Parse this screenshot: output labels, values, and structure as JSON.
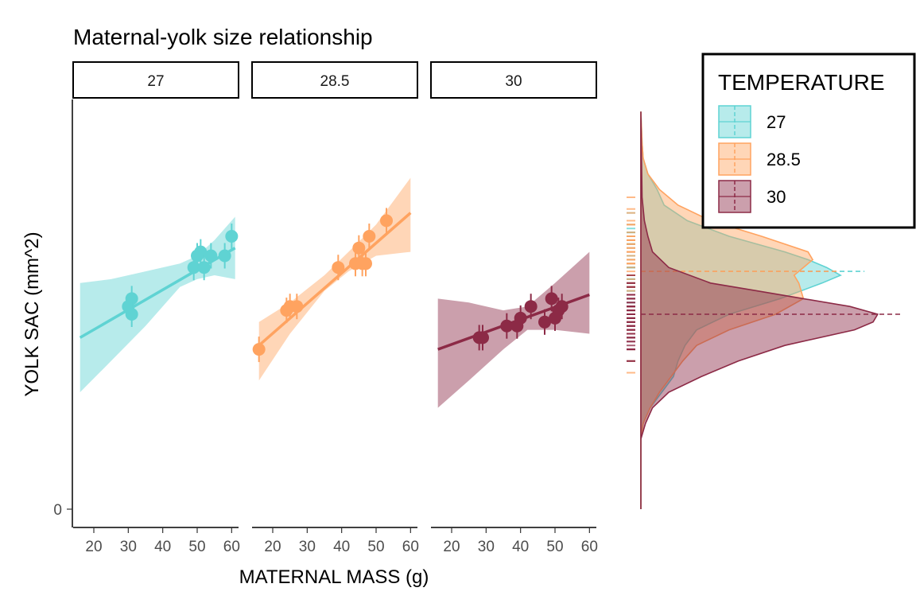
{
  "chart_data": {
    "type": "scatter",
    "title": "Maternal-yolk size relationship",
    "xlabel": "MATERNAL MASS (g)",
    "ylabel": "YOLK SAC (mm^2)",
    "xlim": [
      14,
      62
    ],
    "x_ticks": [
      "20",
      "30",
      "40",
      "50",
      "60"
    ],
    "y_ticks": [
      "0"
    ],
    "ylim": [
      0,
      1.07
    ],
    "grid": false,
    "legend": {
      "title": "TEMPERATURE",
      "position": "top-right",
      "entries": [
        "27",
        "28.5",
        "30"
      ]
    },
    "facets": [
      {
        "label": "27",
        "color": "#5fd3d3",
        "points": [
          [
            30,
            0.52
          ],
          [
            31,
            0.54
          ],
          [
            31,
            0.5
          ],
          [
            49,
            0.62
          ],
          [
            50,
            0.65
          ],
          [
            51,
            0.66
          ],
          [
            52,
            0.62
          ],
          [
            54,
            0.65
          ],
          [
            58,
            0.65
          ],
          [
            60,
            0.7
          ]
        ],
        "fit": {
          "x": [
            16,
            61
          ],
          "y": [
            0.44,
            0.67
          ]
        },
        "ci_upper": [
          [
            16,
            0.58
          ],
          [
            25,
            0.59
          ],
          [
            35,
            0.61
          ],
          [
            45,
            0.63
          ],
          [
            50,
            0.65
          ],
          [
            55,
            0.69
          ],
          [
            61,
            0.75
          ]
        ],
        "ci_lower": [
          [
            16,
            0.3
          ],
          [
            25,
            0.38
          ],
          [
            35,
            0.47
          ],
          [
            45,
            0.57
          ],
          [
            50,
            0.59
          ],
          [
            55,
            0.6
          ],
          [
            61,
            0.59
          ]
        ]
      },
      {
        "label": "28.5",
        "color": "#ffa360",
        "points": [
          [
            16,
            0.41
          ],
          [
            24,
            0.51
          ],
          [
            25,
            0.52
          ],
          [
            27,
            0.52
          ],
          [
            39,
            0.62
          ],
          [
            44,
            0.63
          ],
          [
            45,
            0.67
          ],
          [
            46,
            0.63
          ],
          [
            47,
            0.63
          ],
          [
            48,
            0.7
          ],
          [
            53,
            0.74
          ]
        ],
        "fit": {
          "x": [
            16,
            60
          ],
          "y": [
            0.42,
            0.76
          ]
        },
        "ci_upper": [
          [
            16,
            0.48
          ],
          [
            25,
            0.53
          ],
          [
            35,
            0.6
          ],
          [
            42,
            0.66
          ],
          [
            50,
            0.73
          ],
          [
            60,
            0.85
          ]
        ],
        "ci_lower": [
          [
            16,
            0.33
          ],
          [
            25,
            0.45
          ],
          [
            35,
            0.56
          ],
          [
            42,
            0.61
          ],
          [
            50,
            0.65
          ],
          [
            60,
            0.66
          ]
        ]
      },
      {
        "label": "30",
        "color": "#8c2a46",
        "points": [
          [
            28,
            0.44
          ],
          [
            29,
            0.44
          ],
          [
            36,
            0.47
          ],
          [
            39,
            0.47
          ],
          [
            40,
            0.49
          ],
          [
            43,
            0.52
          ],
          [
            47,
            0.48
          ],
          [
            49,
            0.54
          ],
          [
            50,
            0.49
          ],
          [
            51,
            0.51
          ],
          [
            52,
            0.52
          ]
        ],
        "fit": {
          "x": [
            16,
            60
          ],
          "y": [
            0.41,
            0.55
          ]
        },
        "ci_upper": [
          [
            16,
            0.54
          ],
          [
            25,
            0.53
          ],
          [
            35,
            0.51
          ],
          [
            42,
            0.52
          ],
          [
            50,
            0.58
          ],
          [
            60,
            0.66
          ]
        ],
        "ci_lower": [
          [
            16,
            0.26
          ],
          [
            25,
            0.33
          ],
          [
            35,
            0.41
          ],
          [
            42,
            0.46
          ],
          [
            50,
            0.46
          ],
          [
            60,
            0.45
          ]
        ]
      }
    ],
    "marginal_density": [
      {
        "label": "27",
        "mean": 0.61,
        "profile": [
          [
            0.0,
            0.0
          ],
          [
            0.18,
            0.0
          ],
          [
            0.22,
            0.01
          ],
          [
            0.26,
            0.04
          ],
          [
            0.3,
            0.09
          ],
          [
            0.34,
            0.14
          ],
          [
            0.38,
            0.16
          ],
          [
            0.42,
            0.19
          ],
          [
            0.46,
            0.24
          ],
          [
            0.5,
            0.38
          ],
          [
            0.54,
            0.6
          ],
          [
            0.58,
            0.78
          ],
          [
            0.6,
            0.86
          ],
          [
            0.62,
            0.8
          ],
          [
            0.64,
            0.72
          ],
          [
            0.66,
            0.62
          ],
          [
            0.7,
            0.38
          ],
          [
            0.74,
            0.2
          ],
          [
            0.78,
            0.1
          ],
          [
            0.82,
            0.07
          ],
          [
            0.86,
            0.03
          ],
          [
            0.9,
            0.01
          ],
          [
            0.94,
            0.005
          ],
          [
            1.02,
            0.0
          ]
        ]
      },
      {
        "label": "28.5",
        "mean": 0.61,
        "profile": [
          [
            0.0,
            0.0
          ],
          [
            0.18,
            0.0
          ],
          [
            0.22,
            0.01
          ],
          [
            0.26,
            0.04
          ],
          [
            0.3,
            0.08
          ],
          [
            0.34,
            0.13
          ],
          [
            0.38,
            0.18
          ],
          [
            0.42,
            0.24
          ],
          [
            0.46,
            0.38
          ],
          [
            0.5,
            0.58
          ],
          [
            0.54,
            0.7
          ],
          [
            0.58,
            0.68
          ],
          [
            0.6,
            0.66
          ],
          [
            0.62,
            0.7
          ],
          [
            0.64,
            0.74
          ],
          [
            0.66,
            0.72
          ],
          [
            0.7,
            0.52
          ],
          [
            0.74,
            0.3
          ],
          [
            0.78,
            0.16
          ],
          [
            0.82,
            0.08
          ],
          [
            0.86,
            0.03
          ],
          [
            0.9,
            0.01
          ],
          [
            0.94,
            0.005
          ],
          [
            1.02,
            0.0
          ]
        ]
      },
      {
        "label": "30",
        "mean": 0.5,
        "profile": [
          [
            0.0,
            0.0
          ],
          [
            0.18,
            0.0
          ],
          [
            0.22,
            0.02
          ],
          [
            0.26,
            0.05
          ],
          [
            0.3,
            0.12
          ],
          [
            0.34,
            0.26
          ],
          [
            0.38,
            0.42
          ],
          [
            0.42,
            0.62
          ],
          [
            0.46,
            0.92
          ],
          [
            0.48,
            1.0
          ],
          [
            0.5,
            1.02
          ],
          [
            0.52,
            0.9
          ],
          [
            0.54,
            0.7
          ],
          [
            0.56,
            0.5
          ],
          [
            0.58,
            0.3
          ],
          [
            0.62,
            0.12
          ],
          [
            0.66,
            0.05
          ],
          [
            0.7,
            0.03
          ],
          [
            0.74,
            0.015
          ],
          [
            0.8,
            0.005
          ],
          [
            1.02,
            0.0
          ]
        ]
      }
    ]
  }
}
